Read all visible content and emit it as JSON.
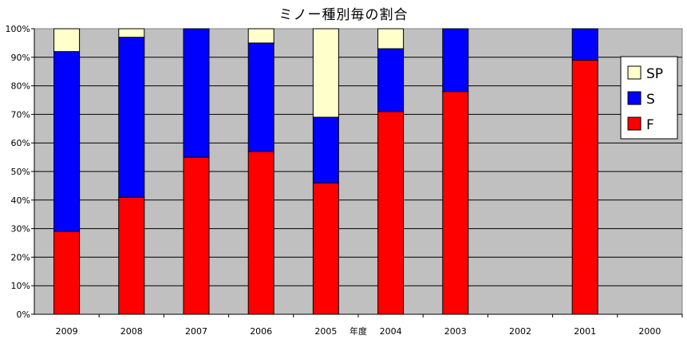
{
  "chart_data": {
    "type": "bar",
    "stacked": true,
    "percent": true,
    "title": "ミノー種別毎の割合",
    "xlabel": "年度",
    "ylabel": "",
    "ylim": [
      0,
      100
    ],
    "yticks": [
      "0%",
      "10%",
      "20%",
      "30%",
      "40%",
      "50%",
      "60%",
      "70%",
      "80%",
      "90%",
      "100%"
    ],
    "grid": true,
    "legend_position": "right",
    "categories": [
      "2009",
      "2008",
      "2007",
      "2006",
      "2005",
      "2004",
      "2003",
      "2002",
      "2001",
      "2000"
    ],
    "series": [
      {
        "name": "F",
        "color": "#ff0000",
        "values": [
          29,
          41,
          55,
          57,
          46,
          71,
          78,
          0,
          89,
          0
        ]
      },
      {
        "name": "S",
        "color": "#0000ff",
        "values": [
          63,
          56,
          45,
          38,
          23,
          22,
          22,
          0,
          11,
          0
        ]
      },
      {
        "name": "SP",
        "color": "#ffffcc",
        "values": [
          8,
          3,
          0,
          5,
          31,
          7,
          0,
          0,
          0,
          0
        ]
      }
    ],
    "legend": [
      "SP",
      "S",
      "F"
    ],
    "plot_background": "#c0c0c0"
  }
}
